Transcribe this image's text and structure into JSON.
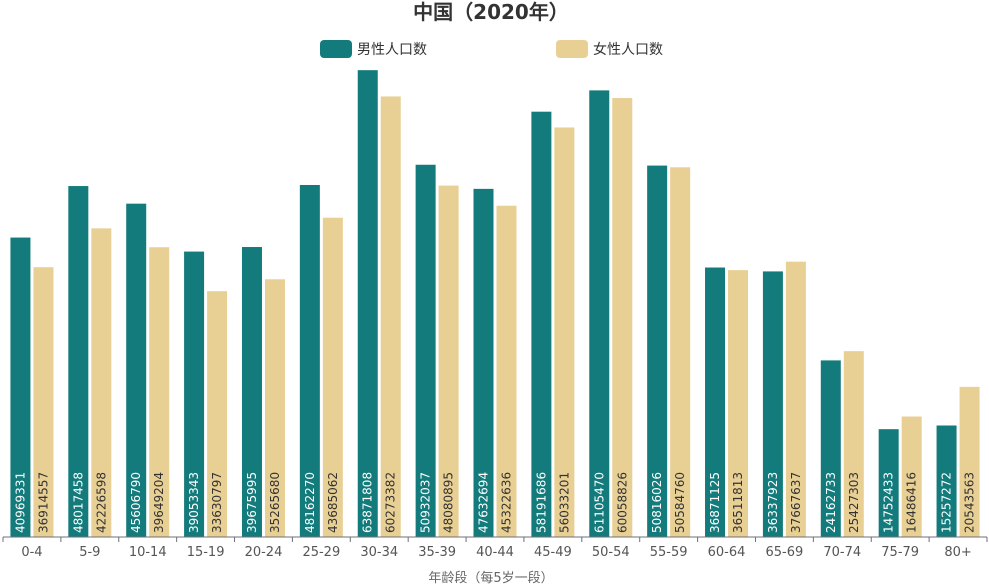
{
  "chart_data": {
    "type": "bar",
    "title": "中国（2020年）",
    "xlabel": "年龄段（每5岁一段）",
    "ylabel": "",
    "ylim": [
      0,
      68000000
    ],
    "grid": false,
    "legend_position": "top-center",
    "categories": [
      "0-4",
      "5-9",
      "10-14",
      "15-19",
      "20-24",
      "25-29",
      "30-34",
      "35-39",
      "40-44",
      "45-49",
      "50-54",
      "55-59",
      "60-64",
      "65-69",
      "70-74",
      "75-79",
      "80+"
    ],
    "series": [
      {
        "name": "男性人口数",
        "color": "#137b7b",
        "values": [
          40969331,
          48017458,
          45606790,
          39053343,
          39675995,
          48162270,
          63871808,
          50932037,
          47632694,
          58191686,
          61105470,
          50816026,
          36871125,
          36337923,
          24162733,
          14752433,
          15257272
        ]
      },
      {
        "name": "女性人口数",
        "color": "#e8cf94",
        "values": [
          36914557,
          42226598,
          39649204,
          33630797,
          35265680,
          43685062,
          60273382,
          48080895,
          45322636,
          56033201,
          60058826,
          50584760,
          36511813,
          37667637,
          25427303,
          16486416,
          20543563
        ]
      }
    ]
  }
}
